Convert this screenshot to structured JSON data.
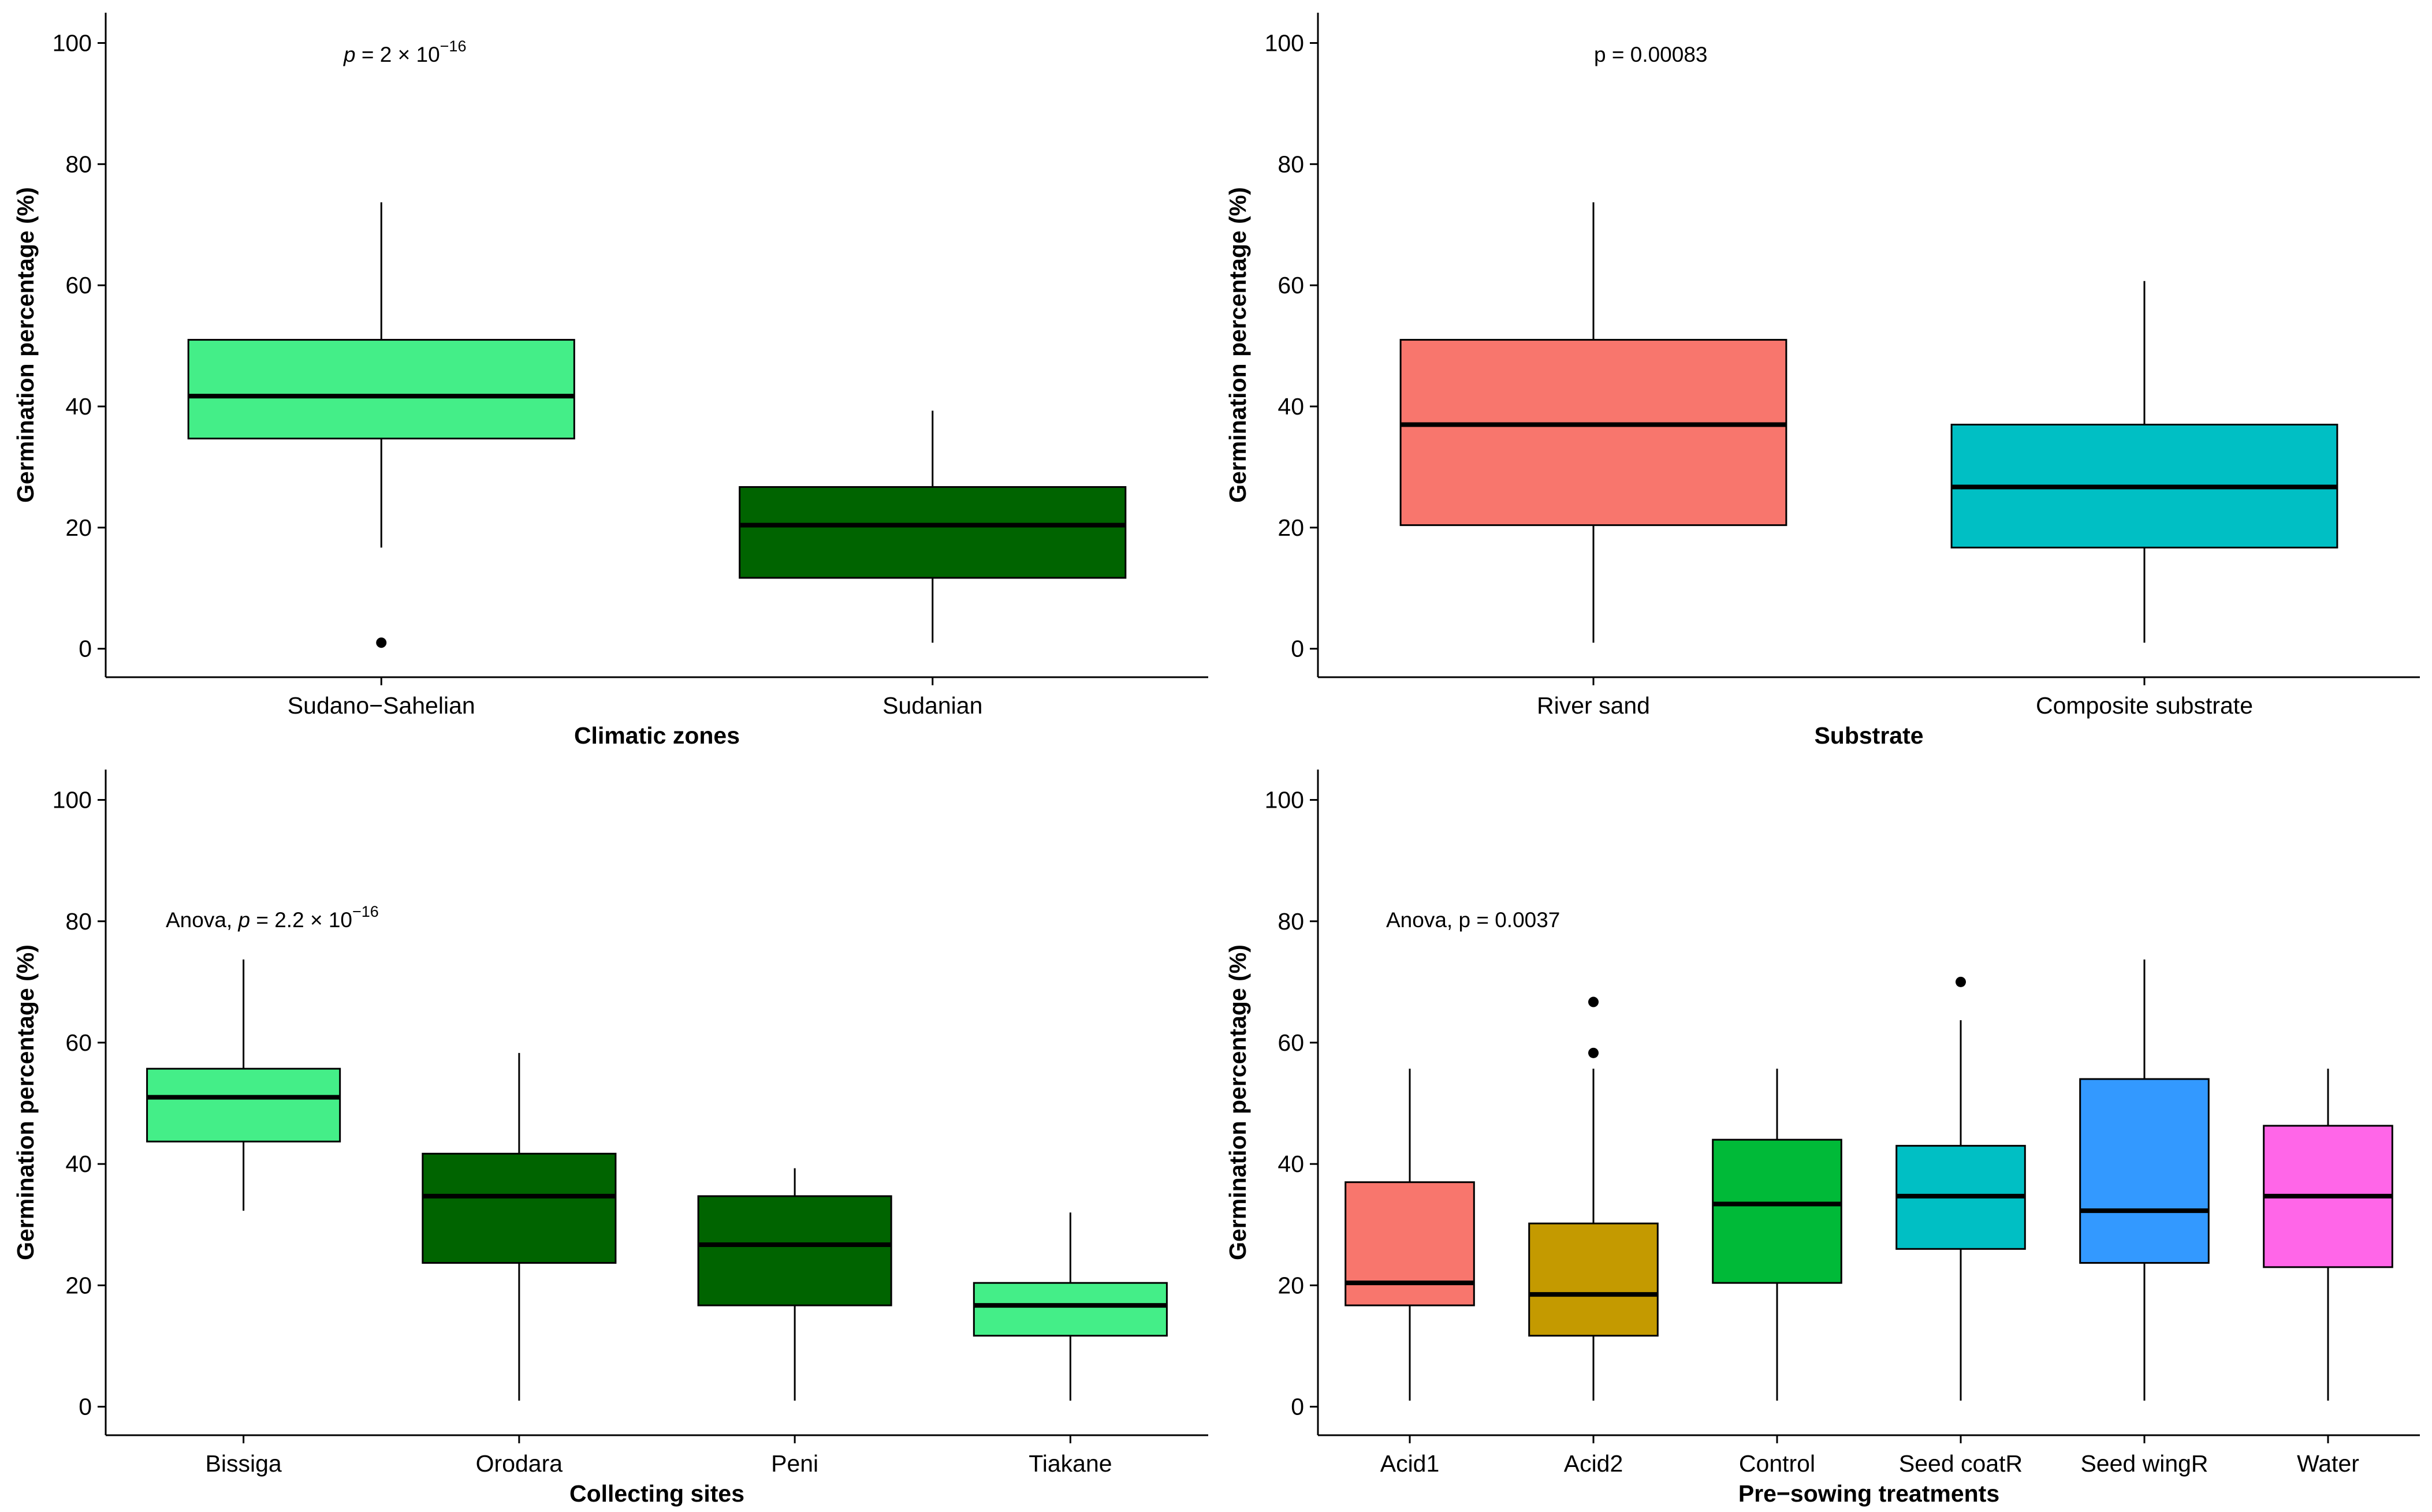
{
  "chart_data": [
    {
      "type": "box",
      "id": "climatic",
      "title": "",
      "xlabel": "Climatic zones",
      "ylabel": "Germination percentage (%)",
      "ylim": [
        -4.7,
        105
      ],
      "yticks": [
        0,
        20,
        40,
        60,
        80,
        100
      ],
      "annotation": {
        "prefix": "",
        "pvar": "p",
        "eq": " = 2 × 10",
        "exp": "−16",
        "tail": ""
      },
      "categories": [
        "Sudano−Sahelian",
        "Sudanian"
      ],
      "boxes": [
        {
          "name": "Sudano−Sahelian",
          "min": 16.7,
          "q1": 34.7,
          "median": 41.7,
          "q3": 51.0,
          "max": 73.7,
          "color": "#44EE88",
          "outliers": [
            1.0
          ]
        },
        {
          "name": "Sudanian",
          "min": 1.0,
          "q1": 11.7,
          "median": 20.4,
          "q3": 26.7,
          "max": 39.3,
          "color": "#006400",
          "outliers": []
        }
      ]
    },
    {
      "type": "box",
      "id": "substrate",
      "title": "",
      "xlabel": "Substrate",
      "ylabel": "Germination percentage (%)",
      "ylim": [
        -4.7,
        105
      ],
      "yticks": [
        0,
        20,
        40,
        60,
        80,
        100
      ],
      "annotation": {
        "prefix": "",
        "pvar": "",
        "eq": "p = 0.00083",
        "exp": "",
        "tail": ""
      },
      "categories": [
        "River sand",
        "Composite substrate"
      ],
      "boxes": [
        {
          "name": "River sand",
          "min": 1.0,
          "q1": 20.4,
          "median": 37.0,
          "q3": 51.0,
          "max": 73.7,
          "color": "#F8766D",
          "outliers": []
        },
        {
          "name": "Composite substrate",
          "min": 1.0,
          "q1": 16.7,
          "median": 26.7,
          "q3": 37.0,
          "max": 60.7,
          "color": "#00BFC4",
          "outliers": []
        }
      ]
    },
    {
      "type": "box",
      "id": "sites",
      "title": "",
      "xlabel": "Collecting sites",
      "ylabel": "Germination percentage (%)",
      "ylim": [
        -4.7,
        105
      ],
      "yticks": [
        0,
        20,
        40,
        60,
        80,
        100
      ],
      "annotation": {
        "prefix": "Anova, ",
        "pvar": "p",
        "eq": " = 2.2 × 10",
        "exp": "−16",
        "tail": ""
      },
      "categories": [
        "Bissiga",
        "Orodara",
        "Peni",
        "Tiakane"
      ],
      "boxes": [
        {
          "name": "Bissiga",
          "min": 32.3,
          "q1": 43.7,
          "median": 51.0,
          "q3": 55.7,
          "max": 73.7,
          "color": "#44EE88",
          "outliers": []
        },
        {
          "name": "Orodara",
          "min": 1.0,
          "q1": 23.7,
          "median": 34.7,
          "q3": 41.7,
          "max": 58.3,
          "color": "#006400",
          "outliers": []
        },
        {
          "name": "Peni",
          "min": 1.0,
          "q1": 16.7,
          "median": 26.7,
          "q3": 34.7,
          "max": 39.3,
          "color": "#006400",
          "outliers": []
        },
        {
          "name": "Tiakane",
          "min": 1.0,
          "q1": 11.7,
          "median": 16.7,
          "q3": 20.4,
          "max": 32.0,
          "color": "#44EE88",
          "outliers": []
        }
      ]
    },
    {
      "type": "box",
      "id": "treatments",
      "title": "",
      "xlabel": "Pre−sowing treatments",
      "ylabel": "Germination percentage (%)",
      "ylim": [
        -4.7,
        105
      ],
      "yticks": [
        0,
        20,
        40,
        60,
        80,
        100
      ],
      "annotation": {
        "prefix": "",
        "pvar": "",
        "eq": "Anova, p = 0.0037",
        "exp": "",
        "tail": ""
      },
      "categories": [
        "Acid1",
        "Acid2",
        "Control",
        "Seed coatR",
        "Seed wingR",
        "Water"
      ],
      "boxes": [
        {
          "name": "Acid1",
          "min": 1.0,
          "q1": 16.7,
          "median": 20.4,
          "q3": 37.0,
          "max": 55.7,
          "color": "#F8766D",
          "outliers": []
        },
        {
          "name": "Acid2",
          "min": 1.0,
          "q1": 11.7,
          "median": 18.5,
          "q3": 30.2,
          "max": 55.7,
          "color": "#C49A00",
          "outliers": [
            58.3,
            66.7
          ]
        },
        {
          "name": "Control",
          "min": 1.0,
          "q1": 20.4,
          "median": 33.4,
          "q3": 44.0,
          "max": 55.7,
          "color": "#00BA38",
          "outliers": []
        },
        {
          "name": "Seed coatR",
          "min": 1.0,
          "q1": 26.0,
          "median": 34.7,
          "q3": 43.0,
          "max": 63.7,
          "color": "#00BFC4",
          "outliers": [
            70.0
          ]
        },
        {
          "name": "Seed wingR",
          "min": 1.0,
          "q1": 23.7,
          "median": 32.3,
          "q3": 54.0,
          "max": 73.7,
          "color": "#3399FF",
          "outliers": []
        },
        {
          "name": "Water",
          "min": 1.0,
          "q1": 23.0,
          "median": 34.7,
          "q3": 46.3,
          "max": 55.7,
          "color": "#FF66E8",
          "outliers": []
        }
      ]
    }
  ]
}
